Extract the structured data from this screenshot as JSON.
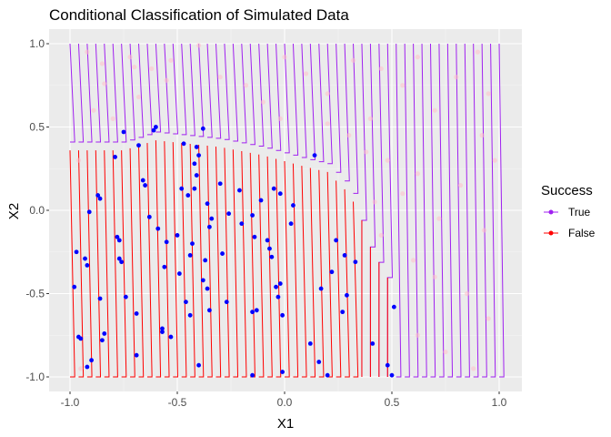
{
  "chart_data": {
    "type": "scatter",
    "title": "Conditional Classification of Simulated Data",
    "xlabel": "X1",
    "ylabel": "X2",
    "xlim": [
      -1.0,
      1.0
    ],
    "ylim": [
      -1.0,
      1.0
    ],
    "x_ticks": [
      "-1.0",
      "-0.5",
      "0.0",
      "0.5",
      "1.0"
    ],
    "y_ticks": [
      "-1.0",
      "-0.5",
      "0.0",
      "0.5",
      "1.0"
    ],
    "grid": true,
    "legend": {
      "title": "Success",
      "position": "right",
      "entries": [
        {
          "label": "True",
          "color": "#a020f0"
        },
        {
          "label": "False",
          "color": "#ff0000"
        }
      ]
    },
    "colors": {
      "panel": "#ebebeb",
      "grid": "#ffffff",
      "true_line": "#a020f0",
      "false_line": "#ff0000",
      "points": "#0000ff",
      "faint_points": "#ffc0cb"
    },
    "boundary": [
      [
        -1.0,
        0.36
      ],
      [
        -0.75,
        0.36
      ],
      [
        -0.6,
        0.42
      ],
      [
        -0.45,
        0.4
      ],
      [
        -0.3,
        0.38
      ],
      [
        -0.1,
        0.33
      ],
      [
        0.1,
        0.26
      ],
      [
        0.2,
        0.23
      ],
      [
        0.3,
        0.1
      ],
      [
        0.35,
        -0.02
      ],
      [
        0.4,
        -0.22
      ],
      [
        0.5,
        -0.45
      ]
    ],
    "series": [
      {
        "name": "",
        "points": [
          [
            -0.97,
            -0.25
          ],
          [
            -0.98,
            -0.46
          ],
          [
            -0.96,
            -0.76
          ],
          [
            -0.95,
            -0.77
          ],
          [
            -0.93,
            -0.29
          ],
          [
            -0.92,
            -0.33
          ],
          [
            -0.91,
            -0.01
          ],
          [
            -0.92,
            -0.94
          ],
          [
            -0.9,
            -0.9
          ],
          [
            -0.87,
            0.09
          ],
          [
            -0.86,
            0.07
          ],
          [
            -0.86,
            -0.53
          ],
          [
            -0.85,
            -0.78
          ],
          [
            -0.84,
            -0.74
          ],
          [
            -0.79,
            0.32
          ],
          [
            -0.78,
            -0.16
          ],
          [
            -0.77,
            -0.29
          ],
          [
            -0.77,
            -0.18
          ],
          [
            -0.76,
            -0.31
          ],
          [
            -0.75,
            0.47
          ],
          [
            -0.74,
            -0.52
          ],
          [
            -0.69,
            -0.62
          ],
          [
            -0.69,
            -0.87
          ],
          [
            -0.68,
            0.39
          ],
          [
            -0.66,
            0.18
          ],
          [
            -0.65,
            0.15
          ],
          [
            -0.63,
            -0.04
          ],
          [
            -0.61,
            0.48
          ],
          [
            -0.6,
            0.5
          ],
          [
            -0.59,
            -0.11
          ],
          [
            -0.57,
            -0.71
          ],
          [
            -0.57,
            -0.73
          ],
          [
            -0.56,
            -0.34
          ],
          [
            -0.55,
            -0.19
          ],
          [
            -0.53,
            -0.76
          ],
          [
            -0.5,
            -0.15
          ],
          [
            -0.49,
            -0.38
          ],
          [
            -0.48,
            0.13
          ],
          [
            -0.47,
            0.4
          ],
          [
            -0.46,
            -0.55
          ],
          [
            -0.45,
            0.09
          ],
          [
            -0.44,
            -0.27
          ],
          [
            -0.44,
            -0.63
          ],
          [
            -0.43,
            -0.2
          ],
          [
            -0.42,
            0.13
          ],
          [
            -0.42,
            0.28
          ],
          [
            -0.41,
            0.38
          ],
          [
            -0.41,
            0.21
          ],
          [
            -0.4,
            0.33
          ],
          [
            -0.4,
            -0.93
          ],
          [
            -0.38,
            0.49
          ],
          [
            -0.38,
            -0.42
          ],
          [
            -0.37,
            -0.3
          ],
          [
            -0.36,
            -0.47
          ],
          [
            -0.36,
            0.04
          ],
          [
            -0.35,
            -0.1
          ],
          [
            -0.35,
            -0.6
          ],
          [
            -0.34,
            -0.05
          ],
          [
            -0.3,
            0.16
          ],
          [
            -0.29,
            -0.26
          ],
          [
            -0.27,
            -0.55
          ],
          [
            -0.26,
            -0.02
          ],
          [
            -0.21,
            0.12
          ],
          [
            -0.2,
            -0.08
          ],
          [
            -0.15,
            -0.03
          ],
          [
            -0.15,
            -0.61
          ],
          [
            -0.15,
            -0.99
          ],
          [
            -0.14,
            -0.16
          ],
          [
            -0.13,
            -0.6
          ],
          [
            -0.11,
            0.06
          ],
          [
            -0.08,
            -0.18
          ],
          [
            -0.07,
            -0.23
          ],
          [
            -0.06,
            -0.28
          ],
          [
            -0.05,
            0.13
          ],
          [
            -0.04,
            -0.46
          ],
          [
            -0.03,
            -0.52
          ],
          [
            -0.02,
            0.1
          ],
          [
            -0.02,
            -0.44
          ],
          [
            -0.01,
            -0.63
          ],
          [
            -0.01,
            -0.97
          ],
          [
            0.03,
            -0.08
          ],
          [
            0.04,
            0.03
          ],
          [
            0.12,
            -0.8
          ],
          [
            0.14,
            0.33
          ],
          [
            0.16,
            -0.91
          ],
          [
            0.17,
            -0.47
          ],
          [
            0.2,
            -0.99
          ],
          [
            0.22,
            -0.37
          ],
          [
            0.24,
            -0.18
          ],
          [
            0.27,
            -0.61
          ],
          [
            0.28,
            -0.27
          ],
          [
            0.29,
            -0.51
          ],
          [
            0.33,
            -0.31
          ],
          [
            0.41,
            -0.8
          ],
          [
            0.48,
            -0.93
          ],
          [
            0.5,
            -0.99
          ],
          [
            0.51,
            -0.58
          ]
        ]
      }
    ],
    "faint_points": [
      [
        -0.92,
        0.95
      ],
      [
        -0.85,
        0.88
      ],
      [
        -0.72,
        0.92
      ],
      [
        -0.7,
        0.86
      ],
      [
        -0.62,
        0.85
      ],
      [
        -0.53,
        0.9
      ],
      [
        -0.4,
        0.99
      ],
      [
        -0.55,
        0.78
      ],
      [
        -0.68,
        0.68
      ],
      [
        -0.89,
        0.6
      ],
      [
        -0.84,
        0.76
      ],
      [
        -0.3,
        0.8
      ],
      [
        -0.18,
        0.75
      ],
      [
        -0.1,
        0.65
      ],
      [
        0.0,
        0.92
      ],
      [
        0.1,
        0.82
      ],
      [
        0.2,
        0.7
      ],
      [
        0.32,
        0.9
      ],
      [
        0.4,
        0.55
      ],
      [
        0.45,
        0.85
      ],
      [
        0.55,
        0.75
      ],
      [
        0.62,
        0.92
      ],
      [
        0.7,
        0.6
      ],
      [
        0.8,
        0.8
      ],
      [
        0.9,
        0.95
      ],
      [
        0.95,
        0.7
      ],
      [
        0.48,
        0.3
      ],
      [
        0.55,
        0.1
      ],
      [
        0.62,
        0.22
      ],
      [
        0.72,
        -0.05
      ],
      [
        0.82,
        0.15
      ],
      [
        0.93,
        -0.12
      ],
      [
        0.6,
        -0.3
      ],
      [
        0.7,
        -0.4
      ],
      [
        0.85,
        -0.5
      ],
      [
        0.95,
        -0.65
      ],
      [
        0.62,
        -0.75
      ],
      [
        0.75,
        -0.85
      ],
      [
        0.88,
        -0.95
      ],
      [
        0.42,
        0.05
      ],
      [
        0.45,
        -0.15
      ],
      [
        0.38,
        0.35
      ],
      [
        0.3,
        0.45
      ],
      [
        0.2,
        0.52
      ],
      [
        -0.8,
        0.55
      ],
      [
        -0.96,
        0.3
      ],
      [
        -0.95,
        -0.95
      ],
      [
        -0.02,
        0.55
      ],
      [
        0.92,
        0.45
      ],
      [
        0.98,
        0.3
      ]
    ]
  }
}
